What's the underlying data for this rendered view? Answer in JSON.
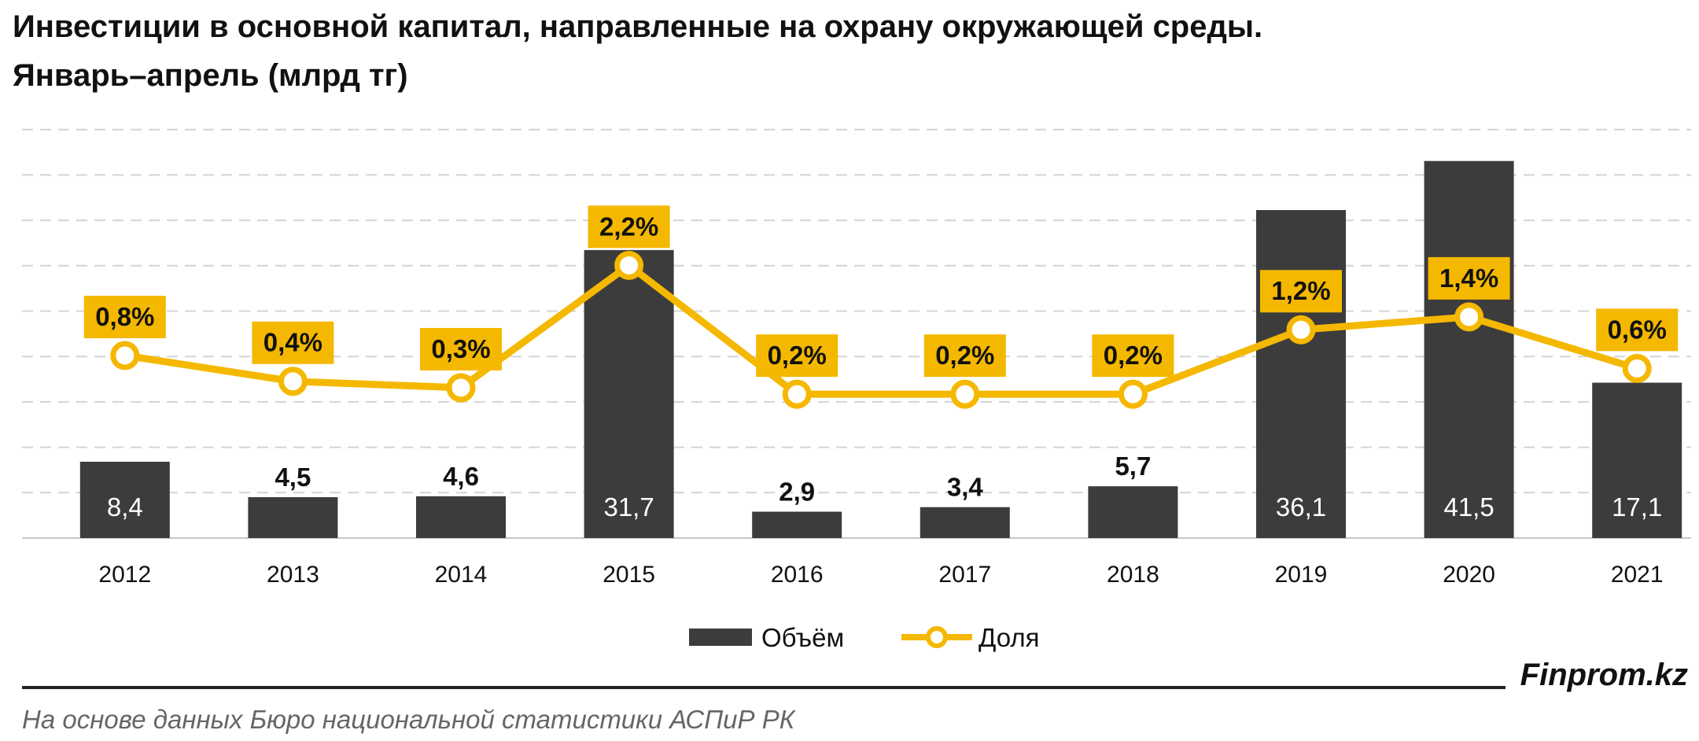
{
  "chart_data": {
    "type": "bar",
    "title": "Инвестиции в основной капитал, направленные на охрану окружающей среды.",
    "subtitle": "Январь–апрель (млрд тг)",
    "categories": [
      "2012",
      "2013",
      "2014",
      "2015",
      "2016",
      "2017",
      "2018",
      "2019",
      "2020",
      "2021"
    ],
    "series": [
      {
        "name": "Объём",
        "type": "bar",
        "values": [
          8.4,
          4.5,
          4.6,
          31.7,
          2.9,
          3.4,
          5.7,
          36.1,
          41.5,
          17.1
        ],
        "labels": [
          "8,4",
          "4,5",
          "4,6",
          "31,7",
          "2,9",
          "3,4",
          "5,7",
          "36,1",
          "41,5",
          "17,1"
        ]
      },
      {
        "name": "Доля",
        "type": "line",
        "values": [
          0.8,
          0.4,
          0.3,
          2.2,
          0.2,
          0.2,
          0.2,
          1.2,
          1.4,
          0.6
        ],
        "labels": [
          "0,8%",
          "0,4%",
          "0,3%",
          "2,2%",
          "0,2%",
          "0,2%",
          "0,2%",
          "1,2%",
          "1,4%",
          "0,6%"
        ]
      }
    ],
    "ylim": [
      0,
      45
    ],
    "grid": true,
    "legend": "bottom-center"
  },
  "colors": {
    "bar": "#3c3c3c",
    "line": "#f5b800",
    "label_box": "#f5b800",
    "grid": "#d4d4d4"
  },
  "footer": {
    "brand": "Finprom.kz",
    "source": "На основе данных Бюро национальной статистики АСПиР РК"
  }
}
